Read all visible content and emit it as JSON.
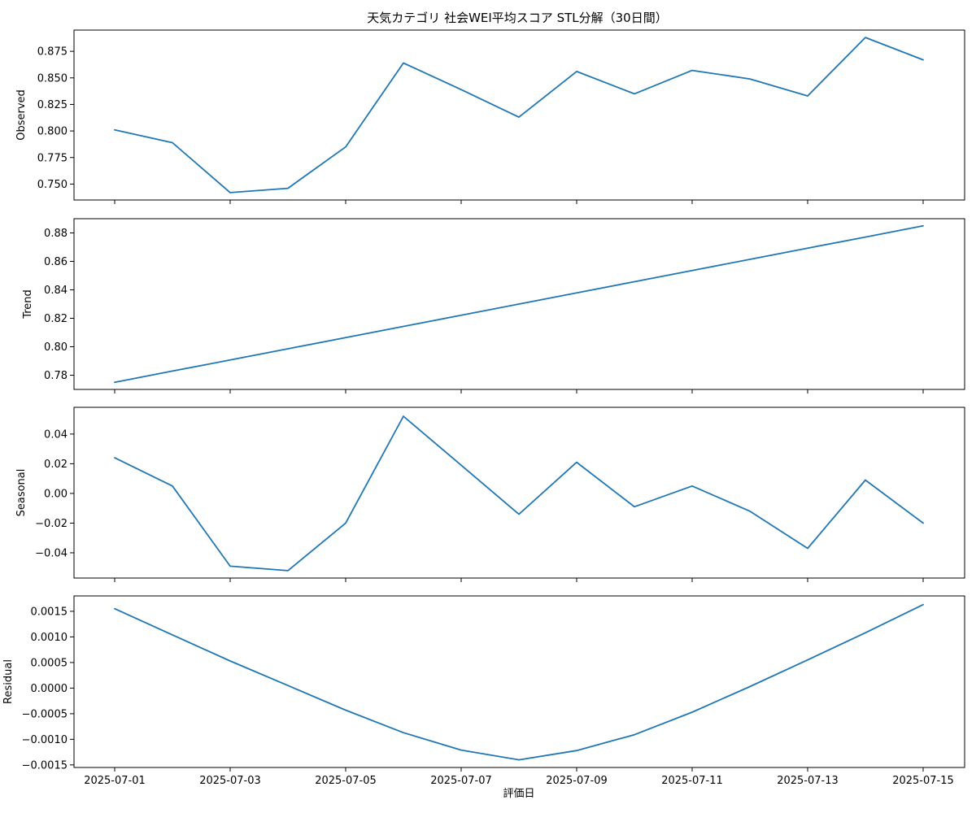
{
  "chart_data": {
    "type": "line",
    "title": "天気カテゴリ 社会WEI平均スコア STL分解（30日間）",
    "xlabel": "評価日",
    "x": [
      "2025-07-01",
      "2025-07-02",
      "2025-07-03",
      "2025-07-04",
      "2025-07-05",
      "2025-07-06",
      "2025-07-07",
      "2025-07-08",
      "2025-07-09",
      "2025-07-10",
      "2025-07-11",
      "2025-07-12",
      "2025-07-13",
      "2025-07-14",
      "2025-07-15"
    ],
    "x_tick_labels": [
      "2025-07-01",
      "2025-07-03",
      "2025-07-05",
      "2025-07-07",
      "2025-07-09",
      "2025-07-11",
      "2025-07-13",
      "2025-07-15"
    ],
    "line_color": "#1f77b4",
    "panels": [
      {
        "ylabel": "Observed",
        "ylim": [
          0.735,
          0.895
        ],
        "yticks": [
          0.75,
          0.775,
          0.8,
          0.825,
          0.85,
          0.875
        ],
        "ytick_labels": [
          "0.750",
          "0.775",
          "0.800",
          "0.825",
          "0.850",
          "0.875"
        ],
        "values": [
          0.801,
          0.789,
          0.742,
          0.746,
          0.785,
          0.864,
          0.839,
          0.813,
          0.856,
          0.835,
          0.857,
          0.849,
          0.833,
          0.888,
          0.867
        ]
      },
      {
        "ylabel": "Trend",
        "ylim": [
          0.77,
          0.89
        ],
        "yticks": [
          0.78,
          0.8,
          0.82,
          0.84,
          0.86,
          0.88
        ],
        "ytick_labels": [
          "0.78",
          "0.80",
          "0.82",
          "0.84",
          "0.86",
          "0.88"
        ],
        "values": [
          0.775,
          0.7829,
          0.7907,
          0.7986,
          0.8064,
          0.8143,
          0.8221,
          0.83,
          0.8379,
          0.8457,
          0.8536,
          0.8614,
          0.8693,
          0.8771,
          0.885
        ]
      },
      {
        "ylabel": "Seasonal",
        "ylim": [
          -0.057,
          0.058
        ],
        "yticks": [
          -0.04,
          -0.02,
          0.0,
          0.02,
          0.04
        ],
        "ytick_labels": [
          "−0.04",
          "−0.02",
          "0.00",
          "0.02",
          "0.04"
        ],
        "values": [
          0.024,
          0.005,
          -0.049,
          -0.052,
          -0.02,
          0.052,
          0.019,
          -0.014,
          0.021,
          -0.009,
          0.005,
          -0.012,
          -0.037,
          0.009,
          -0.02
        ]
      },
      {
        "ylabel": "Residual",
        "ylim": [
          -0.00155,
          0.0018
        ],
        "yticks": [
          -0.0015,
          -0.001,
          -0.0005,
          0.0,
          0.0005,
          0.001,
          0.0015
        ],
        "ytick_labels": [
          "−0.0015",
          "−0.0010",
          "−0.0005",
          "0.0000",
          "0.0005",
          "0.0010",
          "0.0015"
        ],
        "values": [
          0.00155,
          0.00104,
          0.00053,
          5e-05,
          -0.00043,
          -0.00087,
          -0.00121,
          -0.0014,
          -0.00122,
          -0.00091,
          -0.00047,
          3e-05,
          0.00055,
          0.00108,
          0.00163
        ]
      }
    ]
  }
}
